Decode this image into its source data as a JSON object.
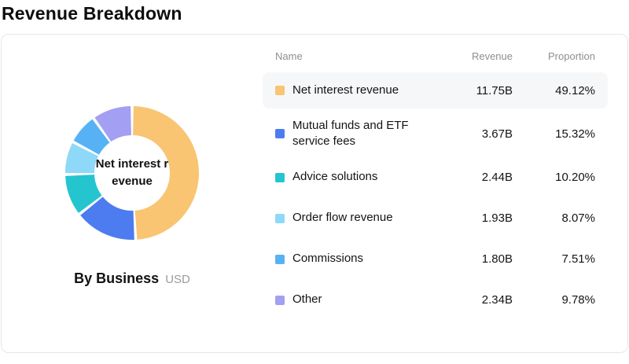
{
  "title": "Revenue Breakdown",
  "chart": {
    "center_label": "Net interest revenue",
    "footer_title": "By Business",
    "footer_unit": "USD"
  },
  "table": {
    "headers": {
      "name": "Name",
      "revenue": "Revenue",
      "proportion": "Proportion"
    }
  },
  "chart_data": {
    "type": "pie",
    "subtype": "donut",
    "title": "By Business",
    "unit": "USD",
    "center_label": "Net interest revenue",
    "legend_position": "right-table",
    "categories": [
      "Net interest revenue",
      "Mutual funds and ETF service fees",
      "Advice solutions",
      "Order flow revenue",
      "Commissions",
      "Other"
    ],
    "series": [
      {
        "name": "Net interest revenue",
        "revenue_label": "11.75B",
        "value": 11.75,
        "proportion": 49.12,
        "proportion_label": "49.12%",
        "color": "#f9c572",
        "highlighted": true
      },
      {
        "name": "Mutual funds and ETF service fees",
        "revenue_label": "3.67B",
        "value": 3.67,
        "proportion": 15.32,
        "proportion_label": "15.32%",
        "color": "#4d7cf0",
        "highlighted": false
      },
      {
        "name": "Advice solutions",
        "revenue_label": "2.44B",
        "value": 2.44,
        "proportion": 10.2,
        "proportion_label": "10.20%",
        "color": "#25c5d0",
        "highlighted": false
      },
      {
        "name": "Order flow revenue",
        "revenue_label": "1.93B",
        "value": 1.93,
        "proportion": 8.07,
        "proportion_label": "8.07%",
        "color": "#8ed9f8",
        "highlighted": false
      },
      {
        "name": "Commissions",
        "revenue_label": "1.80B",
        "value": 1.8,
        "proportion": 7.51,
        "proportion_label": "7.51%",
        "color": "#57b2f5",
        "highlighted": false
      },
      {
        "name": "Other",
        "revenue_label": "2.34B",
        "value": 2.34,
        "proportion": 9.78,
        "proportion_label": "9.78%",
        "color": "#a39ff3",
        "highlighted": false
      }
    ]
  }
}
